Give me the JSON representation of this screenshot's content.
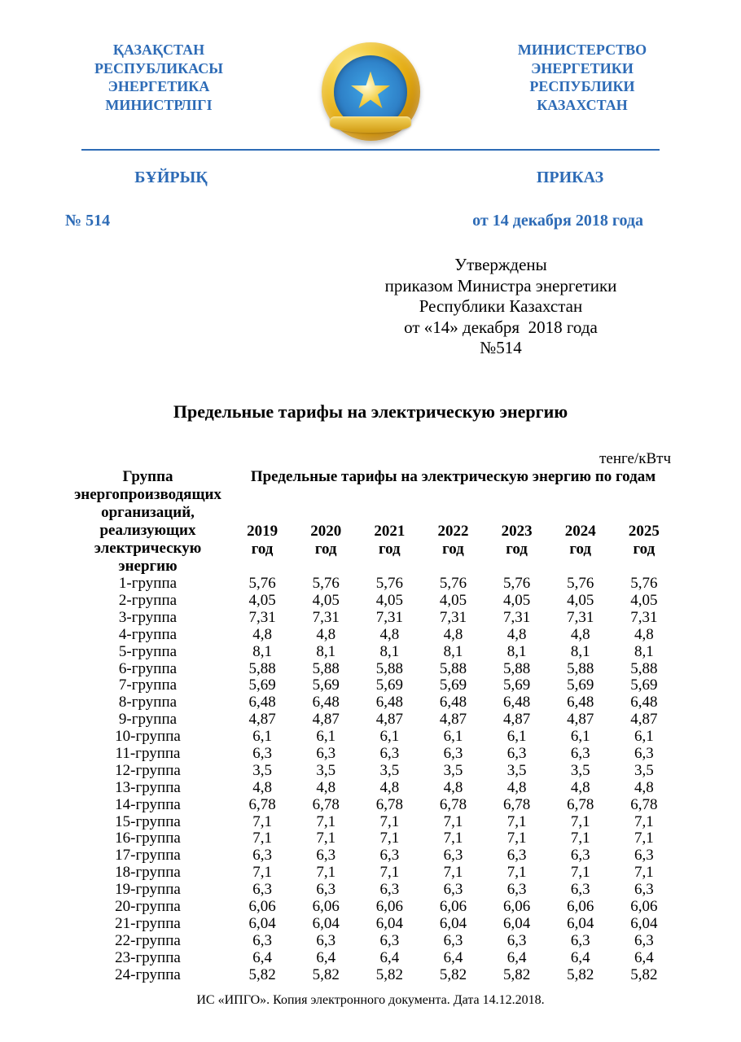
{
  "colors": {
    "brand_blue": "#2d6bb6",
    "text": "#000000",
    "background": "#ffffff",
    "divider": "#2d6bb6"
  },
  "fonts": {
    "family": "Times New Roman",
    "header_size_pt": 18,
    "subheader_size_pt": 20,
    "meta_size_pt": 20,
    "approval_size_pt": 21,
    "title_size_pt": 22,
    "table_size_pt": 19,
    "footer_size_pt": 16
  },
  "header": {
    "left_kk": "ҚАЗАҚСТАН\nРЕСПУБЛИКАСЫ\nЭНЕРГЕТИКА\nМИНИСТРЛІГІ",
    "right_ru": "МИНИСТЕРСТВО\nЭНЕРГЕТИКИ\nРЕСПУБЛИКИ\nКАЗАХСТАН"
  },
  "subheader": {
    "left_kk": "БҰЙРЫҚ",
    "right_ru": "ПРИКАЗ"
  },
  "doc_meta": {
    "number_label": "№ 514",
    "date_label": "от 14 декабря 2018 года"
  },
  "approval": {
    "line1": "Утверждены",
    "line2": "приказом Министра энергетики",
    "line3": "Республики Казахстан",
    "line4": "от «14» декабря  2018 года",
    "line5": "№514"
  },
  "title": "Предельные тарифы на электрическую энергию",
  "unit_label": "тенге/кВтч",
  "table_header": {
    "group_col": "Группа энергопроизводящих организаций, реализующих электрическую энергию",
    "span_label": "Предельные тарифы на электрическую энергию по годам",
    "years": [
      "2019",
      "2020",
      "2021",
      "2022",
      "2023",
      "2024",
      "2025"
    ],
    "year_suffix": "год"
  },
  "tariffs": {
    "type": "table",
    "columns": [
      "Группа",
      "2019",
      "2020",
      "2021",
      "2022",
      "2023",
      "2024",
      "2025"
    ],
    "rows": [
      {
        "label": "1-группа",
        "values": [
          "5,76",
          "5,76",
          "5,76",
          "5,76",
          "5,76",
          "5,76",
          "5,76"
        ]
      },
      {
        "label": "2-группа",
        "values": [
          "4,05",
          "4,05",
          "4,05",
          "4,05",
          "4,05",
          "4,05",
          "4,05"
        ]
      },
      {
        "label": "3-группа",
        "values": [
          "7,31",
          "7,31",
          "7,31",
          "7,31",
          "7,31",
          "7,31",
          "7,31"
        ]
      },
      {
        "label": "4-группа",
        "values": [
          "4,8",
          "4,8",
          "4,8",
          "4,8",
          "4,8",
          "4,8",
          "4,8"
        ]
      },
      {
        "label": "5-группа",
        "values": [
          "8,1",
          "8,1",
          "8,1",
          "8,1",
          "8,1",
          "8,1",
          "8,1"
        ]
      },
      {
        "label": "6-группа",
        "values": [
          "5,88",
          "5,88",
          "5,88",
          "5,88",
          "5,88",
          "5,88",
          "5,88"
        ]
      },
      {
        "label": "7-группа",
        "values": [
          "5,69",
          "5,69",
          "5,69",
          "5,69",
          "5,69",
          "5,69",
          "5,69"
        ]
      },
      {
        "label": "8-группа",
        "values": [
          "6,48",
          "6,48",
          "6,48",
          "6,48",
          "6,48",
          "6,48",
          "6,48"
        ]
      },
      {
        "label": "9-группа",
        "values": [
          "4,87",
          "4,87",
          "4,87",
          "4,87",
          "4,87",
          "4,87",
          "4,87"
        ]
      },
      {
        "label": "10-группа",
        "values": [
          "6,1",
          "6,1",
          "6,1",
          "6,1",
          "6,1",
          "6,1",
          "6,1"
        ]
      },
      {
        "label": "11-группа",
        "values": [
          "6,3",
          "6,3",
          "6,3",
          "6,3",
          "6,3",
          "6,3",
          "6,3"
        ]
      },
      {
        "label": "12-группа",
        "values": [
          "3,5",
          "3,5",
          "3,5",
          "3,5",
          "3,5",
          "3,5",
          "3,5"
        ]
      },
      {
        "label": "13-группа",
        "values": [
          "4,8",
          "4,8",
          "4,8",
          "4,8",
          "4,8",
          "4,8",
          "4,8"
        ]
      },
      {
        "label": "14-группа",
        "values": [
          "6,78",
          "6,78",
          "6,78",
          "6,78",
          "6,78",
          "6,78",
          "6,78"
        ]
      },
      {
        "label": "15-группа",
        "values": [
          "7,1",
          "7,1",
          "7,1",
          "7,1",
          "7,1",
          "7,1",
          "7,1"
        ]
      },
      {
        "label": "16-группа",
        "values": [
          "7,1",
          "7,1",
          "7,1",
          "7,1",
          "7,1",
          "7,1",
          "7,1"
        ]
      },
      {
        "label": "17-группа",
        "values": [
          "6,3",
          "6,3",
          "6,3",
          "6,3",
          "6,3",
          "6,3",
          "6,3"
        ]
      },
      {
        "label": "18-группа",
        "values": [
          "7,1",
          "7,1",
          "7,1",
          "7,1",
          "7,1",
          "7,1",
          "7,1"
        ]
      },
      {
        "label": "19-группа",
        "values": [
          "6,3",
          "6,3",
          "6,3",
          "6,3",
          "6,3",
          "6,3",
          "6,3"
        ]
      },
      {
        "label": "20-группа",
        "values": [
          "6,06",
          "6,06",
          "6,06",
          "6,06",
          "6,06",
          "6,06",
          "6,06"
        ]
      },
      {
        "label": "21-группа",
        "values": [
          "6,04",
          "6,04",
          "6,04",
          "6,04",
          "6,04",
          "6,04",
          "6,04"
        ]
      },
      {
        "label": "22-группа",
        "values": [
          "6,3",
          "6,3",
          "6,3",
          "6,3",
          "6,3",
          "6,3",
          "6,3"
        ]
      },
      {
        "label": "23-группа",
        "values": [
          "6,4",
          "6,4",
          "6,4",
          "6,4",
          "6,4",
          "6,4",
          "6,4"
        ]
      },
      {
        "label": "24-группа",
        "values": [
          "5,82",
          "5,82",
          "5,82",
          "5,82",
          "5,82",
          "5,82",
          "5,82"
        ]
      }
    ]
  },
  "footer": "ИС «ИПГО». Копия электронного документа. Дата  14.12.2018."
}
